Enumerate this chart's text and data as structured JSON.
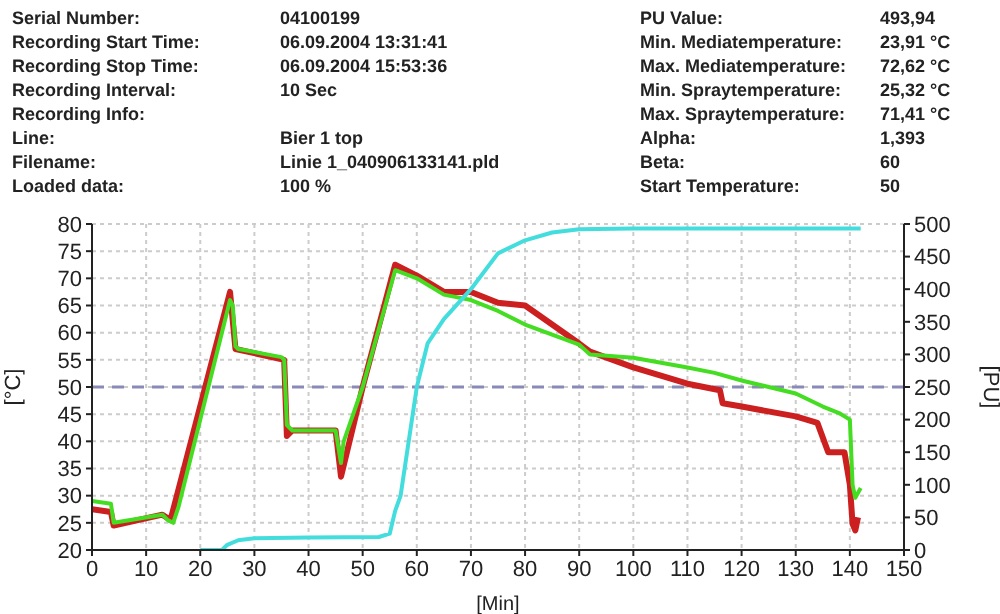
{
  "chart_data": {
    "type": "line",
    "xlabel": "[Min]",
    "ylabel": "[°C]",
    "y2label": "[PU]",
    "annotations": [
      "Serial Number:",
      "04100199",
      "PU Value:",
      "493,94",
      "Recording Start Time:",
      "06.09.2004 13:31:41",
      "Min. Mediatemperature:",
      "23,91 °C",
      "Recording Stop Time:",
      "06.09.2004 15:53:36",
      "Max. Mediatemperature:",
      "72,62 °C",
      "Recording Interval:",
      "10 Sec",
      "Min. Spraytemperature:",
      "25,32 °C",
      "Recording Info:",
      "Max. Spraytemperature:",
      "71,41 °C",
      "Line:",
      "Bier 1 top",
      "Alpha:",
      "1,393",
      "Filename:",
      "Linie 1_040906133141.pld",
      "Beta:",
      "60",
      "Loaded data:",
      "100 %",
      "Start Temperature:",
      "50"
    ],
    "xlim": [
      0,
      150
    ],
    "xticks": [
      0,
      10,
      20,
      30,
      40,
      50,
      60,
      70,
      80,
      90,
      100,
      110,
      120,
      130,
      140,
      150
    ],
    "ylim": [
      20,
      80
    ],
    "yticks": [
      20,
      25,
      30,
      35,
      40,
      45,
      50,
      55,
      60,
      65,
      70,
      75,
      80
    ],
    "y2lim": [
      0,
      500
    ],
    "y2ticks": [
      0,
      50,
      100,
      150,
      200,
      250,
      300,
      350,
      400,
      450,
      500
    ],
    "grid": true,
    "line_style": "solid",
    "ref_lines": [
      {
        "axis": "y",
        "value": 50,
        "color": "#8a8ab8",
        "line_style": "dashed"
      }
    ],
    "series": [
      {
        "color": "#cc2020",
        "x": [
          0,
          3.5,
          4,
          13,
          14.5,
          25.5,
          26.5,
          35.5,
          36,
          37,
          45,
          46,
          50,
          56,
          60,
          65,
          70,
          75,
          80,
          90,
          92,
          100,
          110,
          116,
          116.5,
          120,
          130,
          134,
          136,
          139,
          140,
          140.5,
          141,
          141.5
        ],
        "values": [
          27.5,
          27,
          24.5,
          26.5,
          25.5,
          67.5,
          57,
          55,
          41,
          42,
          42,
          33.5,
          50,
          72.5,
          70.5,
          67.5,
          67.5,
          65.5,
          65,
          58,
          56.5,
          53.6,
          50.6,
          49.4,
          47,
          46.4,
          44.6,
          43.4,
          38,
          38,
          32,
          24.8,
          23.6,
          26
        ]
      },
      {
        "color": "#44dd22",
        "x": [
          0,
          3.5,
          4,
          13,
          14,
          15,
          16,
          25.5,
          26,
          26.5,
          27,
          35,
          35.5,
          36,
          37,
          45,
          46,
          46.5,
          50,
          56,
          60,
          65,
          70,
          75,
          80,
          90,
          92,
          100,
          110,
          115,
          120,
          130,
          135,
          138,
          140,
          140.5,
          141,
          142
        ],
        "values": [
          29,
          28.5,
          25,
          26.5,
          25.5,
          25,
          28,
          66,
          65,
          57.5,
          57,
          55.5,
          55,
          43,
          42,
          42,
          36,
          40,
          50,
          71.5,
          70,
          67,
          66,
          64,
          61.5,
          57.8,
          56,
          55.4,
          53.6,
          52.6,
          51.2,
          48.8,
          46.4,
          45.2,
          44,
          32,
          29.6,
          31.4
        ]
      },
      {
        "color": "#44dddd",
        "axis": "y2",
        "x": [
          20,
          24,
          25,
          27,
          30,
          40,
          53,
          55,
          56,
          57,
          60,
          62,
          65,
          70,
          75,
          80,
          85,
          90,
          100,
          120,
          142
        ],
        "values": [
          0,
          0,
          8,
          15,
          18,
          19,
          20,
          25,
          60,
          83,
          250,
          317,
          354,
          400,
          455,
          475,
          487,
          492,
          493,
          493,
          493
        ]
      }
    ]
  }
}
